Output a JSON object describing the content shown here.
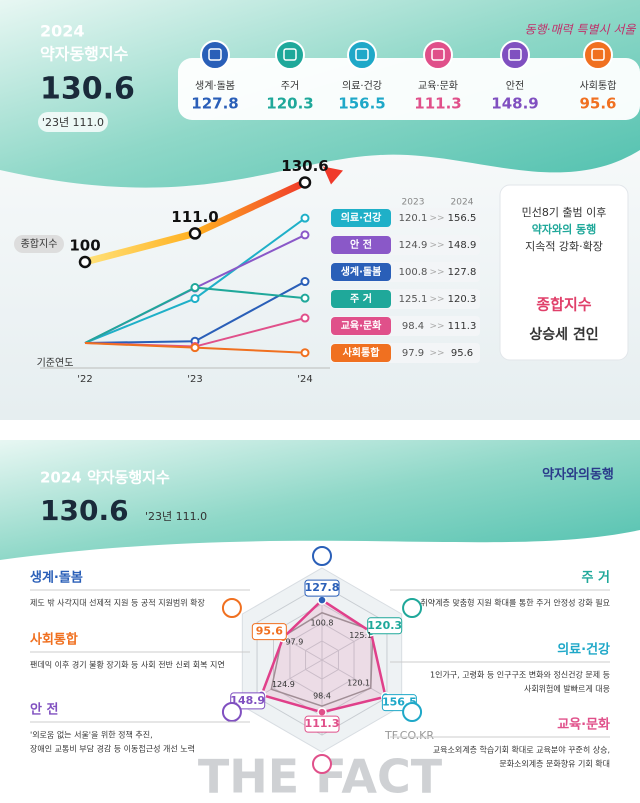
{
  "header": {
    "year": "2024",
    "title": "약자동행지수",
    "value": "130.6",
    "prev": "'23년 111.0",
    "logo": "동행·매력 특별시 서울"
  },
  "categories": [
    {
      "name": "생계·돌봄",
      "value": 127.8,
      "color": "#2a5fb8"
    },
    {
      "name": "주거",
      "value": 120.3,
      "color": "#1fa89a"
    },
    {
      "name": "의료·건강",
      "value": 156.5,
      "color": "#1fa8c8"
    },
    {
      "name": "교육·문화",
      "value": 111.3,
      "color": "#e0508a"
    },
    {
      "name": "안전",
      "value": 148.9,
      "color": "#8050c0"
    },
    {
      "name": "사회통합",
      "value": 95.6,
      "color": "#f07020"
    }
  ],
  "trend": {
    "label": "종합지수",
    "base_label": "기준연도",
    "years": [
      "'22",
      "'23",
      "'24"
    ],
    "base": 100,
    "composite": [
      100,
      111,
      130.6
    ],
    "composite_labels": [
      "100",
      "111.0",
      "130.6"
    ],
    "table_header": [
      "2023",
      "2024"
    ],
    "arrow": ">>",
    "rows": [
      {
        "name": "의료·건강",
        "v2023": 120.1,
        "v2024": 156.5,
        "color": "#1fb0c8"
      },
      {
        "name": "안 전",
        "v2023": 124.9,
        "v2024": 148.9,
        "color": "#8a58c8"
      },
      {
        "name": "생계·돌봄",
        "v2023": 100.8,
        "v2024": 127.8,
        "color": "#2a5fb8"
      },
      {
        "name": "주 거",
        "v2023": 125.1,
        "v2024": 120.3,
        "color": "#1fa89a"
      },
      {
        "name": "교육·문화",
        "v2023": 98.4,
        "v2024": 111.3,
        "color": "#e0508a"
      },
      {
        "name": "사회통합",
        "v2023": 97.9,
        "v2024": 95.6,
        "color": "#f07020"
      }
    ],
    "note": [
      "민선8기 출범 이후",
      "약자와의 동행",
      "지속적 강화·확장",
      "종합지수",
      "상승세 견인"
    ]
  },
  "section2": {
    "title": "2024 약자동행지수",
    "value": "130.6",
    "prev": "'23년 111.0",
    "logo": "약자와의동행"
  },
  "radar": {
    "rlim": [
      0,
      160
    ],
    "axes": [
      {
        "name": "생계·돌봄",
        "v2023": 100.8,
        "v2024": 127.8,
        "color": "#2a5fb8",
        "desc": [
          "제도 밖 사각지대 선제적 지원 등 공적 지원범위 확장"
        ]
      },
      {
        "name": "주 거",
        "v2023": 125.1,
        "v2024": 120.3,
        "color": "#1fa89a",
        "desc": [
          "취약계층 맞춤형 지원 확대를 통한 주거 안정성 강화 필요"
        ]
      },
      {
        "name": "의료·건강",
        "v2023": 120.1,
        "v2024": 156.5,
        "color": "#1fa8c8",
        "desc": [
          "1인가구, 고령화 등 인구구조 변화와 정신건강 문제 등",
          "사회위험에 발빠르게 대응"
        ]
      },
      {
        "name": "교육·문화",
        "v2023": 98.4,
        "v2024": 111.3,
        "color": "#e0508a",
        "desc": [
          "교육소외계층 학습기회 확대로 교육분야 꾸준히 상승,",
          "문화소외계층 문화향유 기회 확대"
        ]
      },
      {
        "name": "안 전",
        "v2023": 124.9,
        "v2024": 148.9,
        "color": "#8050c0",
        "desc": [
          "'외로움 없는 서울'을 위한 정책 추진,",
          "장애인 교통비 부담 경감 등 이동접근성 개선 노력"
        ]
      },
      {
        "name": "사회통합",
        "v2023": 97.9,
        "v2024": 95.6,
        "color": "#f07020",
        "desc": [
          "팬데믹 이후 경기 불황 장기화 등 사회 전반 신뢰 회복 지연"
        ]
      }
    ]
  },
  "watermark": {
    "site": "TF.CO.KR",
    "brand": "THE FACT"
  }
}
